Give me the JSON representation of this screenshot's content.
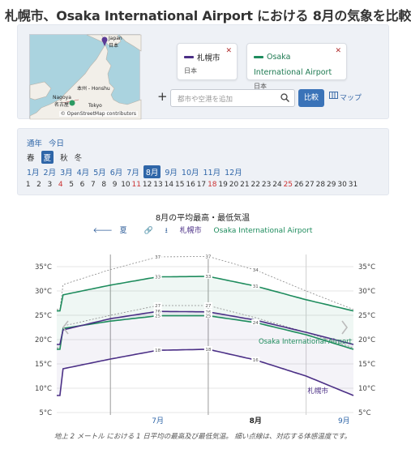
{
  "page": {
    "title": "札幌市、Osaka International Airport における 8月の気象を比較"
  },
  "map": {
    "labels": {
      "japan": "Japan",
      "japan_jp": "日本",
      "honshu": "本州 - Honshu",
      "nagoya": "Nagoya",
      "nagoya_jp": "名古屋",
      "tokyo": "Tokyo"
    },
    "credit": "© OpenStreetMap contributors"
  },
  "locations": [
    {
      "name": "札幌市",
      "country": "日本",
      "color": "#4b2f86"
    },
    {
      "name": "Osaka International Airport",
      "country": "日本",
      "color": "#1e8c5d"
    }
  ],
  "search": {
    "placeholder": "都市や空港を追加",
    "compare_label": "比較",
    "map_label": "マップ"
  },
  "period": {
    "scope": [
      "通年",
      "今日"
    ],
    "seasons": [
      {
        "label": "春",
        "active": false
      },
      {
        "label": "夏",
        "active": true
      },
      {
        "label": "秋",
        "active": false
      },
      {
        "label": "冬",
        "active": false
      }
    ],
    "months": [
      "1月",
      "2月",
      "3月",
      "4月",
      "5月",
      "6月",
      "7月",
      "8月",
      "9月",
      "10月",
      "11月",
      "12月"
    ],
    "active_month_index": 7,
    "days": [
      "1",
      "2",
      "3",
      "4",
      "5",
      "6",
      "7",
      "8",
      "9",
      "10",
      "11",
      "12",
      "13",
      "14",
      "15",
      "16",
      "17",
      "18",
      "19",
      "20",
      "21",
      "22",
      "23",
      "24",
      "25",
      "26",
      "27",
      "28",
      "29",
      "30",
      "31"
    ],
    "red_days": [
      4,
      11,
      18,
      25
    ]
  },
  "chart_data": {
    "type": "line",
    "title": "8月の平均最高・最低気温",
    "toolbar": {
      "prev_label": "夏",
      "series_a": "札幌市",
      "series_b": "Osaka International Airport"
    },
    "x": {
      "ticks": [
        "7月",
        "8月",
        "9月"
      ],
      "range_days": [
        0,
        62
      ],
      "month_starts": [
        0,
        31,
        62
      ]
    },
    "y": {
      "unit": "°C",
      "ticks": [
        5,
        10,
        15,
        20,
        25,
        30,
        35
      ],
      "range": [
        5,
        37
      ]
    },
    "series": [
      {
        "name": "Osaka International Airport",
        "color": "#1e8c5d",
        "high": {
          "x": [
            -15,
            0,
            15,
            31,
            46,
            62,
            77
          ],
          "y": [
            29.2,
            31.2,
            32.9,
            33.0,
            31.0,
            28.2,
            25.9
          ]
        },
        "low": {
          "x": [
            -15,
            0,
            15,
            31,
            46,
            62,
            77
          ],
          "y": [
            22.3,
            23.8,
            24.9,
            24.9,
            23.5,
            21.0,
            18.0
          ]
        },
        "feels_high": {
          "x": [
            -15,
            0,
            15,
            31,
            46,
            62,
            77
          ],
          "y": [
            31.3,
            34.4,
            37.0,
            37.1,
            34.3,
            30.0,
            26.2
          ]
        },
        "feels_low": {
          "x": [
            -15,
            0,
            15,
            31,
            46,
            62,
            77
          ],
          "y": [
            22.8,
            25.0,
            27.0,
            27.0,
            24.5,
            21.5,
            18.3
          ]
        }
      },
      {
        "name": "札幌市",
        "color": "#4b2f86",
        "high": {
          "x": [
            -15,
            0,
            15,
            31,
            46,
            62,
            77
          ],
          "y": [
            22.0,
            24.3,
            25.8,
            25.7,
            24.0,
            21.5,
            19.0
          ]
        },
        "low": {
          "x": [
            -15,
            0,
            15,
            31,
            46,
            62,
            77
          ],
          "y": [
            14.0,
            16.0,
            17.8,
            18.0,
            15.8,
            12.5,
            8.5
          ]
        }
      }
    ],
    "point_labels": [
      {
        "series": "feels_high",
        "x": 15,
        "value": "37"
      },
      {
        "series": "feels_high",
        "x": 31,
        "value": "37"
      },
      {
        "series": "feels_high",
        "x": 46,
        "value": "34"
      },
      {
        "series": "osaka_high",
        "x": 15,
        "value": "33"
      },
      {
        "series": "osaka_high",
        "x": 31,
        "value": "33"
      },
      {
        "series": "osaka_high",
        "x": 46,
        "value": "31"
      },
      {
        "series": "feels_low",
        "x": 15,
        "value": "27"
      },
      {
        "series": "feels_low",
        "x": 31,
        "value": "27"
      },
      {
        "series": "sapporo_high",
        "x": 15,
        "value": "26"
      },
      {
        "series": "sapporo_high",
        "x": 31,
        "value": "26"
      },
      {
        "series": "osaka_low",
        "x": 15,
        "value": "25"
      },
      {
        "series": "osaka_low",
        "x": 31,
        "value": "25"
      },
      {
        "series": "osaka_low",
        "x": 46,
        "value": "24"
      },
      {
        "series": "sapporo_low",
        "x": 15,
        "value": "18"
      },
      {
        "series": "sapporo_low",
        "x": 31,
        "value": "18"
      },
      {
        "series": "sapporo_low",
        "x": 46,
        "value": "16"
      }
    ],
    "end_labels": {
      "osaka": "Osaka International Airport",
      "sapporo": "札幌市"
    },
    "grid": true,
    "footnote": "地上 2 メートル における 1 日平均の最高及び最低気温。 細い点線は、対応する体感温度です。"
  }
}
